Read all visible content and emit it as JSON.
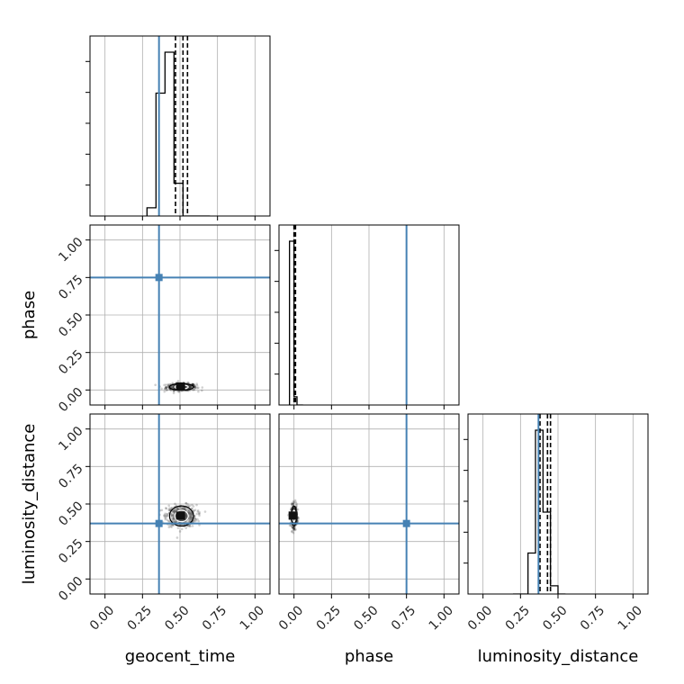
{
  "chart_data": {
    "type": "corner",
    "parameters": [
      "geocent_time",
      "phase",
      "luminosity_distance"
    ],
    "axis_range": [
      -0.1,
      1.1
    ],
    "ticks": [
      0.0,
      0.25,
      0.5,
      0.75,
      1.0
    ],
    "tick_labels": [
      "0.00",
      "0.25",
      "0.50",
      "0.75",
      "1.00"
    ],
    "grid": true,
    "truth": {
      "geocent_time": 0.36,
      "phase": 0.75,
      "luminosity_distance": 0.37
    },
    "truth_color": "#4682b4",
    "histograms": {
      "geocent_time": {
        "bin_edges": [
          0.28,
          0.34,
          0.4,
          0.46,
          0.52,
          0.58,
          0.64,
          0.7
        ],
        "counts": [
          0.05,
          0.75,
          1.0,
          0.2,
          0.0,
          0.0,
          0.0
        ],
        "quantiles": [
          0.47,
          0.52,
          0.55
        ]
      },
      "phase": {
        "bin_edges": [
          -0.03,
          0.0,
          0.02,
          0.06
        ],
        "counts": [
          1.0,
          0.05,
          0.0
        ],
        "quantiles": [
          0.0,
          0.005,
          0.01
        ]
      },
      "luminosity_distance": {
        "bin_edges": [
          0.2,
          0.3,
          0.35,
          0.4,
          0.45,
          0.5,
          0.55
        ],
        "counts": [
          0.0,
          0.25,
          1.0,
          0.5,
          0.05,
          0.0
        ],
        "quantiles": [
          0.38,
          0.43,
          0.45
        ]
      }
    },
    "scatter_2d": [
      {
        "x": "geocent_time",
        "y": "phase",
        "center": [
          0.51,
          0.02
        ],
        "spread": [
          0.05,
          0.02
        ]
      },
      {
        "x": "geocent_time",
        "y": "luminosity_distance",
        "center": [
          0.51,
          0.42
        ],
        "spread": [
          0.05,
          0.06
        ]
      },
      {
        "x": "phase",
        "y": "luminosity_distance",
        "center": [
          0.0,
          0.42
        ],
        "spread": [
          0.01,
          0.06
        ]
      }
    ]
  }
}
